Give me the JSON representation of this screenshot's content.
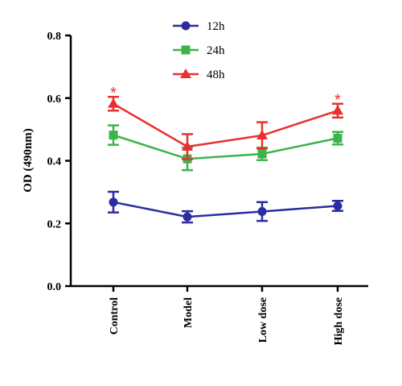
{
  "chart_data": {
    "type": "line",
    "ylabel": "OD (490nm)",
    "xlabel": "",
    "categories": [
      "Control",
      "Model",
      "Low dose",
      "High dose"
    ],
    "ylim": [
      0.0,
      0.8
    ],
    "yticks": [
      "0.0",
      "0.2",
      "0.4",
      "0.6",
      "0.8"
    ],
    "legend_position": "top-center",
    "grid": false,
    "series": [
      {
        "name": "12h",
        "color": "#2b2c9e",
        "marker": "circle",
        "values": [
          0.268,
          0.221,
          0.238,
          0.256
        ],
        "errors": [
          0.033,
          0.018,
          0.03,
          0.016
        ]
      },
      {
        "name": "24h",
        "color": "#3db34a",
        "marker": "square",
        "values": [
          0.482,
          0.406,
          0.422,
          0.472
        ],
        "errors": [
          0.031,
          0.036,
          0.02,
          0.02
        ]
      },
      {
        "name": "48h",
        "color": "#e8312f",
        "marker": "triangle",
        "values": [
          0.582,
          0.445,
          0.481,
          0.56
        ],
        "errors": [
          0.022,
          0.04,
          0.042,
          0.022
        ]
      }
    ],
    "annotations": [
      {
        "text": "*",
        "category": "Control",
        "series": "48h",
        "color": "#e8312f"
      },
      {
        "text": "*",
        "category": "High dose",
        "series": "48h",
        "color": "#e8312f"
      }
    ]
  }
}
